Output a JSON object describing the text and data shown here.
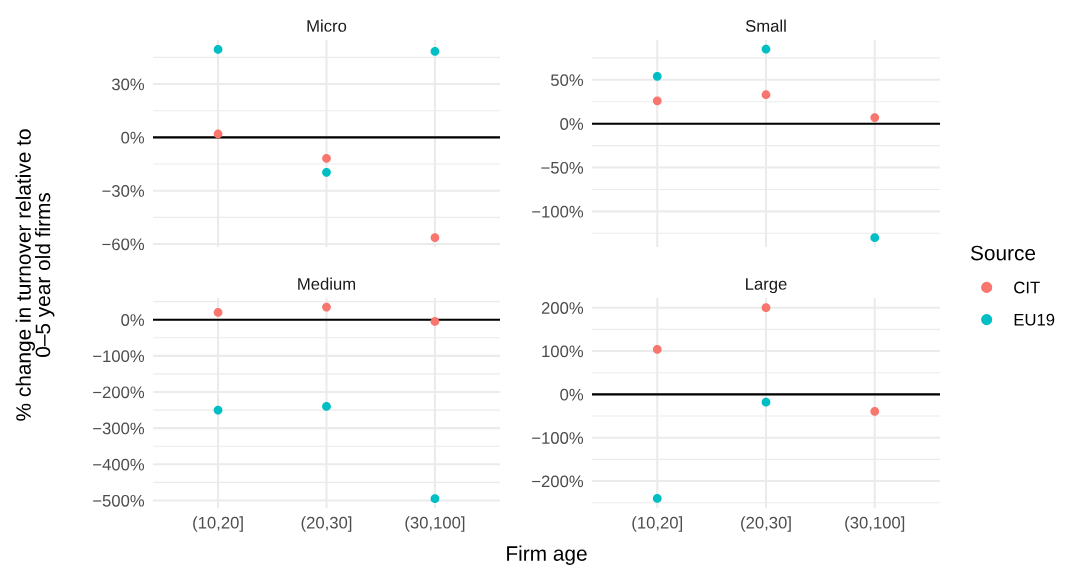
{
  "chart_data": [
    {
      "type": "scatter",
      "title": "Micro",
      "categories": [
        "(10,20]",
        "(20,30]",
        "(30,100]"
      ],
      "xlabel": "Firm age",
      "ylabel": "% change in turnover relative to\n0–5 year old firms",
      "legend_title": "Source",
      "legend": "right",
      "tick_labels": "y",
      "grid": true,
      "marker": "circle",
      "series": [
        {
          "name": "CIT",
          "color": "#f8766d",
          "values": [
            1.9,
            -11.8,
            -56.4
          ]
        },
        {
          "name": "EU19",
          "color": "#00bfc4",
          "values": [
            49.5,
            -19.7,
            48.4
          ]
        }
      ],
      "ylim": [
        -61.7,
        54.8
      ],
      "yticks": [
        {
          "value": -60,
          "label": "−60%"
        },
        {
          "value": -45,
          "label": null
        },
        {
          "value": -30,
          "label": "−30%"
        },
        {
          "value": -15,
          "label": null
        },
        {
          "value": 0,
          "label": "0%"
        },
        {
          "value": 15,
          "label": null
        },
        {
          "value": 30,
          "label": "30%"
        },
        {
          "value": 45,
          "label": null
        }
      ],
      "ref_lines": [
        {
          "axis": "y",
          "value": 0,
          "color": "#000000"
        }
      ]
    },
    {
      "type": "scatter",
      "title": "Small",
      "categories": [
        "(10,20]",
        "(20,30]",
        "(30,100]"
      ],
      "tick_labels": "y",
      "grid": true,
      "marker": "circle",
      "series": [
        {
          "name": "CIT",
          "color": "#f8766d",
          "values": [
            26,
            33,
            7
          ]
        },
        {
          "name": "EU19",
          "color": "#00bfc4",
          "values": [
            54,
            85,
            -130
          ]
        }
      ],
      "ylim": [
        -140.6,
        95.4
      ],
      "yticks": [
        {
          "value": -125,
          "label": null
        },
        {
          "value": -100,
          "label": "−100%"
        },
        {
          "value": -75,
          "label": null
        },
        {
          "value": -50,
          "label": "−50%"
        },
        {
          "value": -25,
          "label": null
        },
        {
          "value": 0,
          "label": "0%"
        },
        {
          "value": 25,
          "label": null
        },
        {
          "value": 50,
          "label": "50%"
        },
        {
          "value": 75,
          "label": null
        }
      ],
      "ref_lines": [
        {
          "axis": "y",
          "value": 0,
          "color": "#000000"
        }
      ]
    },
    {
      "type": "scatter",
      "title": "Medium",
      "categories": [
        "(10,20]",
        "(20,30]",
        "(30,100]"
      ],
      "grid": true,
      "marker": "circle",
      "series": [
        {
          "name": "CIT",
          "color": "#f8766d",
          "values": [
            20,
            35,
            -5
          ]
        },
        {
          "name": "EU19",
          "color": "#00bfc4",
          "values": [
            -250,
            -240,
            -495
          ]
        }
      ],
      "ylim": [
        -520.8,
        60
      ],
      "yticks": [
        {
          "value": -500,
          "label": "−500%"
        },
        {
          "value": -450,
          "label": null
        },
        {
          "value": -400,
          "label": "−400%"
        },
        {
          "value": -350,
          "label": null
        },
        {
          "value": -300,
          "label": "−300%"
        },
        {
          "value": -250,
          "label": null
        },
        {
          "value": -200,
          "label": "−200%"
        },
        {
          "value": -150,
          "label": null
        },
        {
          "value": -100,
          "label": "−100%"
        },
        {
          "value": -50,
          "label": null
        },
        {
          "value": 0,
          "label": "0%"
        },
        {
          "value": 50,
          "label": null
        }
      ],
      "ref_lines": [
        {
          "axis": "y",
          "value": 0,
          "color": "#000000"
        }
      ]
    },
    {
      "type": "scatter",
      "title": "Large",
      "categories": [
        "(10,20]",
        "(20,30]",
        "(30,100]"
      ],
      "grid": true,
      "marker": "circle",
      "series": [
        {
          "name": "CIT",
          "color": "#f8766d",
          "values": [
            104,
            200,
            -39
          ]
        },
        {
          "name": "EU19",
          "color": "#00bfc4",
          "values": [
            -240,
            -18,
            null
          ]
        }
      ],
      "ylim": [
        -262.2,
        222.4
      ],
      "yticks": [
        {
          "value": -250,
          "label": null
        },
        {
          "value": -200,
          "label": "−200%"
        },
        {
          "value": -150,
          "label": null
        },
        {
          "value": -100,
          "label": "−100%"
        },
        {
          "value": -50,
          "label": null
        },
        {
          "value": 0,
          "label": "0%"
        },
        {
          "value": 50,
          "label": null
        },
        {
          "value": 100,
          "label": "100%"
        },
        {
          "value": 150,
          "label": null
        },
        {
          "value": 200,
          "label": "200%"
        }
      ],
      "ref_lines": [
        {
          "axis": "y",
          "value": 0,
          "color": "#000000"
        }
      ]
    }
  ]
}
